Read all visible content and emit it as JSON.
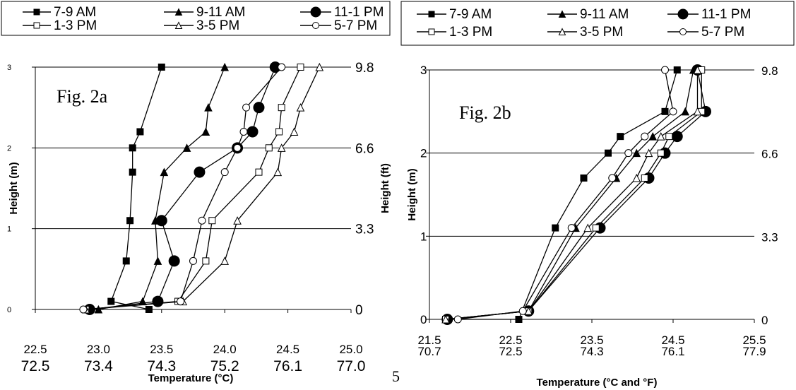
{
  "page_number": "5",
  "legend_labels": [
    "7-9 AM",
    "9-11 AM",
    "11-1 PM",
    "1-3 PM",
    "3-5 PM",
    "5-7 PM"
  ],
  "chart_data": [
    {
      "type": "line",
      "title": "Fig. 2a",
      "xlabel": "Temperature (°C)",
      "ylabel": "Height (m)",
      "y2label": "Height (ft)",
      "xlim": [
        22.5,
        25.0
      ],
      "ylim": [
        0,
        3
      ],
      "x_ticks": [
        "22.5",
        "23.0",
        "23.5",
        "24.0",
        "24.5",
        "25.0"
      ],
      "x2_ticks": [
        "72.5",
        "73.4",
        "74.3",
        "75.2",
        "76.1",
        "77.0"
      ],
      "y_ticks": [
        "0",
        "1",
        "2",
        "3"
      ],
      "y2_ticks": [
        "0",
        "3.3",
        "6.6",
        "9.8"
      ],
      "grid": "horizontal",
      "legend_position": "top",
      "series": [
        {
          "name": "7-9 AM",
          "marker": "filled-square",
          "points": [
            [
              23.4,
              0.0
            ],
            [
              23.1,
              0.1
            ],
            [
              23.22,
              0.6
            ],
            [
              23.25,
              1.1
            ],
            [
              23.27,
              1.7
            ],
            [
              23.27,
              2.0
            ],
            [
              23.33,
              2.2
            ],
            [
              23.5,
              3.0
            ]
          ]
        },
        {
          "name": "9-11 AM",
          "marker": "filled-triangle",
          "points": [
            [
              23.0,
              0.0
            ],
            [
              23.35,
              0.1
            ],
            [
              23.47,
              0.6
            ],
            [
              23.45,
              1.1
            ],
            [
              23.52,
              1.7
            ],
            [
              23.7,
              2.0
            ],
            [
              23.85,
              2.2
            ],
            [
              23.87,
              2.5
            ],
            [
              24.0,
              3.0
            ]
          ]
        },
        {
          "name": "11-1 PM",
          "marker": "filled-circle",
          "points": [
            [
              22.93,
              0.0
            ],
            [
              23.47,
              0.1
            ],
            [
              23.6,
              0.6
            ],
            [
              23.5,
              1.1
            ],
            [
              23.8,
              1.7
            ],
            [
              24.1,
              2.0
            ],
            [
              24.22,
              2.2
            ],
            [
              24.27,
              2.5
            ],
            [
              24.4,
              3.0
            ]
          ]
        },
        {
          "name": "1-3 PM",
          "marker": "open-square",
          "points": [
            [
              22.9,
              0.0
            ],
            [
              23.63,
              0.1
            ],
            [
              23.85,
              0.6
            ],
            [
              23.9,
              1.1
            ],
            [
              24.27,
              1.7
            ],
            [
              24.35,
              2.0
            ],
            [
              24.43,
              2.2
            ],
            [
              24.45,
              2.5
            ],
            [
              24.6,
              3.0
            ]
          ]
        },
        {
          "name": "3-5 PM",
          "marker": "open-triangle",
          "points": [
            [
              22.9,
              0.0
            ],
            [
              23.67,
              0.1
            ],
            [
              24.0,
              0.6
            ],
            [
              24.1,
              1.1
            ],
            [
              24.42,
              1.7
            ],
            [
              24.45,
              2.0
            ],
            [
              24.55,
              2.2
            ],
            [
              24.6,
              2.5
            ],
            [
              24.75,
              3.0
            ]
          ]
        },
        {
          "name": "5-7 PM",
          "marker": "open-circle",
          "points": [
            [
              22.88,
              0.0
            ],
            [
              23.65,
              0.1
            ],
            [
              23.75,
              0.6
            ],
            [
              23.82,
              1.1
            ],
            [
              24.0,
              1.7
            ],
            [
              24.1,
              2.0
            ],
            [
              24.15,
              2.2
            ],
            [
              24.17,
              2.5
            ],
            [
              24.45,
              3.0
            ]
          ]
        }
      ]
    },
    {
      "type": "line",
      "title": "Fig. 2b",
      "xlabel": "Temperature (°C and °F)",
      "ylabel": "Height (m)",
      "xlim": [
        21.5,
        25.5
      ],
      "ylim": [
        0,
        3
      ],
      "x_ticks": [
        "21.5",
        "22.5",
        "23.5",
        "24.5",
        "25.5"
      ],
      "x2_ticks": [
        "70.7",
        "72.5",
        "74.3",
        "76.1",
        "77.9"
      ],
      "y_ticks": [
        "0",
        "1",
        "2",
        "3"
      ],
      "y2_ticks": [
        "0",
        "3.3",
        "6.6",
        "9.8"
      ],
      "grid": "horizontal",
      "legend_position": "top",
      "series": [
        {
          "name": "7-9 AM",
          "marker": "filled-square",
          "points": [
            [
              21.7,
              0.0
            ],
            [
              22.6,
              0.0
            ],
            [
              23.05,
              1.1
            ],
            [
              23.4,
              1.7
            ],
            [
              23.7,
              2.0
            ],
            [
              23.85,
              2.2
            ],
            [
              24.4,
              2.5
            ],
            [
              24.55,
              3.0
            ]
          ]
        },
        {
          "name": "9-11 AM",
          "marker": "filled-triangle",
          "points": [
            [
              21.72,
              0.0
            ],
            [
              22.72,
              0.1
            ],
            [
              23.3,
              1.1
            ],
            [
              23.8,
              1.7
            ],
            [
              24.05,
              2.0
            ],
            [
              24.25,
              2.2
            ],
            [
              24.65,
              2.5
            ],
            [
              24.75,
              3.0
            ]
          ]
        },
        {
          "name": "11-1 PM",
          "marker": "filled-circle",
          "points": [
            [
              21.72,
              0.0
            ],
            [
              22.72,
              0.1
            ],
            [
              23.6,
              1.1
            ],
            [
              24.2,
              1.7
            ],
            [
              24.4,
              2.0
            ],
            [
              24.55,
              2.2
            ],
            [
              24.9,
              2.5
            ],
            [
              24.8,
              3.0
            ]
          ]
        },
        {
          "name": "1-3 PM",
          "marker": "open-square",
          "points": [
            [
              21.7,
              0.0
            ],
            [
              22.72,
              0.1
            ],
            [
              23.55,
              1.1
            ],
            [
              24.15,
              1.7
            ],
            [
              24.35,
              2.0
            ],
            [
              24.45,
              2.2
            ],
            [
              24.85,
              2.5
            ],
            [
              24.85,
              3.0
            ]
          ]
        },
        {
          "name": "3-5 PM",
          "marker": "open-triangle",
          "points": [
            [
              21.7,
              0.0
            ],
            [
              22.72,
              0.1
            ],
            [
              23.45,
              1.1
            ],
            [
              24.05,
              1.7
            ],
            [
              24.2,
              2.0
            ],
            [
              24.35,
              2.2
            ],
            [
              24.8,
              2.5
            ],
            [
              24.8,
              3.0
            ]
          ]
        },
        {
          "name": "5-7 PM",
          "marker": "open-circle",
          "points": [
            [
              21.85,
              0.0
            ],
            [
              22.65,
              0.1
            ],
            [
              23.25,
              1.1
            ],
            [
              23.75,
              1.7
            ],
            [
              23.95,
              2.0
            ],
            [
              24.15,
              2.2
            ],
            [
              24.5,
              2.5
            ],
            [
              24.4,
              3.0
            ]
          ]
        }
      ]
    }
  ]
}
